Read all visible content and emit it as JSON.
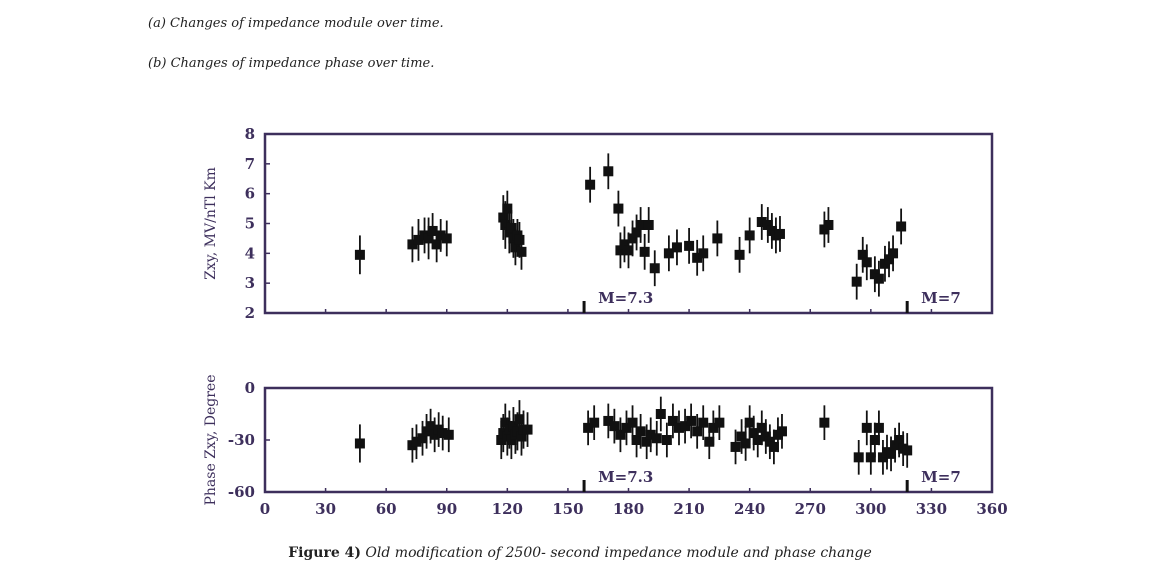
{
  "captions": {
    "a": "(a) Changes of impedance module over time.",
    "b": "(b) Changes of impedance phase over time."
  },
  "figure_caption": {
    "label": "Figure 4)",
    "text": "Old modification of 2500- second impedance module and phase change"
  },
  "colors": {
    "marker": "#111111",
    "axis": "#3d2f5c",
    "text": "#3d2f5c"
  },
  "chart_data": [
    {
      "type": "scatter",
      "title": "",
      "xlabel": "",
      "ylabel": "Zxy, MV/nTl Km",
      "xlim": [
        0,
        360
      ],
      "ylim": [
        2,
        8
      ],
      "yticks": [
        2,
        3,
        4,
        5,
        6,
        7,
        8
      ],
      "error_bars": true,
      "annotations": [
        {
          "text": "M=7.3",
          "x": 158
        },
        {
          "text": "M=7",
          "x": 318
        }
      ],
      "points": [
        {
          "x": 47,
          "y": 3.95,
          "err": 0.65
        },
        {
          "x": 73,
          "y": 4.3,
          "err": 0.6
        },
        {
          "x": 76,
          "y": 4.45,
          "err": 0.7
        },
        {
          "x": 79,
          "y": 4.6,
          "err": 0.6
        },
        {
          "x": 81,
          "y": 4.5,
          "err": 0.7
        },
        {
          "x": 83,
          "y": 4.75,
          "err": 0.6
        },
        {
          "x": 85,
          "y": 4.3,
          "err": 0.6
        },
        {
          "x": 87,
          "y": 4.6,
          "err": 0.55
        },
        {
          "x": 90,
          "y": 4.5,
          "err": 0.6
        },
        {
          "x": 118,
          "y": 5.2,
          "err": 0.75
        },
        {
          "x": 119,
          "y": 4.95,
          "err": 0.8
        },
        {
          "x": 120,
          "y": 5.5,
          "err": 0.6
        },
        {
          "x": 121,
          "y": 4.7,
          "err": 0.7
        },
        {
          "x": 122,
          "y": 4.85,
          "err": 0.6
        },
        {
          "x": 123,
          "y": 4.5,
          "err": 0.65
        },
        {
          "x": 124,
          "y": 4.2,
          "err": 0.6
        },
        {
          "x": 125,
          "y": 4.6,
          "err": 0.55
        },
        {
          "x": 126,
          "y": 4.45,
          "err": 0.6
        },
        {
          "x": 127,
          "y": 4.05,
          "err": 0.6
        },
        {
          "x": 161,
          "y": 6.3,
          "err": 0.6
        },
        {
          "x": 170,
          "y": 6.75,
          "err": 0.6
        },
        {
          "x": 175,
          "y": 5.5,
          "err": 0.6
        },
        {
          "x": 176,
          "y": 4.1,
          "err": 0.6
        },
        {
          "x": 178,
          "y": 4.3,
          "err": 0.6
        },
        {
          "x": 180,
          "y": 4.1,
          "err": 0.6
        },
        {
          "x": 182,
          "y": 4.5,
          "err": 0.6
        },
        {
          "x": 184,
          "y": 4.7,
          "err": 0.6
        },
        {
          "x": 186,
          "y": 4.95,
          "err": 0.6
        },
        {
          "x": 188,
          "y": 4.05,
          "err": 0.6
        },
        {
          "x": 190,
          "y": 4.95,
          "err": 0.6
        },
        {
          "x": 193,
          "y": 3.5,
          "err": 0.6
        },
        {
          "x": 200,
          "y": 4.0,
          "err": 0.6
        },
        {
          "x": 204,
          "y": 4.2,
          "err": 0.6
        },
        {
          "x": 210,
          "y": 4.25,
          "err": 0.6
        },
        {
          "x": 214,
          "y": 3.85,
          "err": 0.6
        },
        {
          "x": 217,
          "y": 4.0,
          "err": 0.6
        },
        {
          "x": 224,
          "y": 4.5,
          "err": 0.6
        },
        {
          "x": 235,
          "y": 3.95,
          "err": 0.6
        },
        {
          "x": 240,
          "y": 4.6,
          "err": 0.6
        },
        {
          "x": 246,
          "y": 5.05,
          "err": 0.6
        },
        {
          "x": 249,
          "y": 4.95,
          "err": 0.6
        },
        {
          "x": 251,
          "y": 4.75,
          "err": 0.6
        },
        {
          "x": 253,
          "y": 4.6,
          "err": 0.6
        },
        {
          "x": 255,
          "y": 4.65,
          "err": 0.6
        },
        {
          "x": 277,
          "y": 4.8,
          "err": 0.6
        },
        {
          "x": 279,
          "y": 4.95,
          "err": 0.6
        },
        {
          "x": 293,
          "y": 3.05,
          "err": 0.6
        },
        {
          "x": 296,
          "y": 3.95,
          "err": 0.6
        },
        {
          "x": 298,
          "y": 3.7,
          "err": 0.6
        },
        {
          "x": 302,
          "y": 3.3,
          "err": 0.6
        },
        {
          "x": 304,
          "y": 3.15,
          "err": 0.6
        },
        {
          "x": 307,
          "y": 3.65,
          "err": 0.6
        },
        {
          "x": 309,
          "y": 3.8,
          "err": 0.6
        },
        {
          "x": 311,
          "y": 4.0,
          "err": 0.6
        },
        {
          "x": 315,
          "y": 4.9,
          "err": 0.6
        }
      ]
    },
    {
      "type": "scatter",
      "title": "",
      "xlabel": "",
      "ylabel": "Phase Zxy, Degree",
      "xlim": [
        0,
        360
      ],
      "ylim": [
        -60,
        0
      ],
      "yticks": [
        0,
        -30,
        -60
      ],
      "xticks": [
        0,
        30,
        60,
        90,
        120,
        150,
        180,
        210,
        240,
        270,
        300,
        330,
        360
      ],
      "error_bars": true,
      "annotations": [
        {
          "text": "M=7.3",
          "x": 158
        },
        {
          "text": "M=7",
          "x": 318
        }
      ],
      "points": [
        {
          "x": 47,
          "y": -32,
          "err": 11
        },
        {
          "x": 73,
          "y": -33,
          "err": 10
        },
        {
          "x": 75,
          "y": -31,
          "err": 10
        },
        {
          "x": 78,
          "y": -29,
          "err": 10
        },
        {
          "x": 80,
          "y": -25,
          "err": 10
        },
        {
          "x": 82,
          "y": -22,
          "err": 10
        },
        {
          "x": 84,
          "y": -27,
          "err": 10
        },
        {
          "x": 86,
          "y": -24,
          "err": 10
        },
        {
          "x": 88,
          "y": -26,
          "err": 10
        },
        {
          "x": 91,
          "y": -27,
          "err": 10
        },
        {
          "x": 117,
          "y": -30,
          "err": 11
        },
        {
          "x": 118,
          "y": -26,
          "err": 11
        },
        {
          "x": 119,
          "y": -20,
          "err": 11
        },
        {
          "x": 120,
          "y": -28,
          "err": 11
        },
        {
          "x": 121,
          "y": -24,
          "err": 11
        },
        {
          "x": 122,
          "y": -30,
          "err": 11
        },
        {
          "x": 123,
          "y": -22,
          "err": 11
        },
        {
          "x": 124,
          "y": -27,
          "err": 11
        },
        {
          "x": 125,
          "y": -25,
          "err": 11
        },
        {
          "x": 126,
          "y": -18,
          "err": 11
        },
        {
          "x": 127,
          "y": -28,
          "err": 11
        },
        {
          "x": 128,
          "y": -24,
          "err": 11
        },
        {
          "x": 130,
          "y": -24,
          "err": 10
        },
        {
          "x": 160,
          "y": -23,
          "err": 10
        },
        {
          "x": 163,
          "y": -20,
          "err": 10
        },
        {
          "x": 170,
          "y": -19,
          "err": 10
        },
        {
          "x": 173,
          "y": -22,
          "err": 10
        },
        {
          "x": 176,
          "y": -27,
          "err": 10
        },
        {
          "x": 179,
          "y": -23,
          "err": 10
        },
        {
          "x": 182,
          "y": -20,
          "err": 10
        },
        {
          "x": 184,
          "y": -30,
          "err": 10
        },
        {
          "x": 186,
          "y": -25,
          "err": 10
        },
        {
          "x": 189,
          "y": -31,
          "err": 10
        },
        {
          "x": 191,
          "y": -27,
          "err": 10
        },
        {
          "x": 194,
          "y": -29,
          "err": 10
        },
        {
          "x": 196,
          "y": -15,
          "err": 10
        },
        {
          "x": 199,
          "y": -30,
          "err": 10
        },
        {
          "x": 202,
          "y": -19,
          "err": 10
        },
        {
          "x": 205,
          "y": -23,
          "err": 10
        },
        {
          "x": 208,
          "y": -22,
          "err": 10
        },
        {
          "x": 211,
          "y": -19,
          "err": 10
        },
        {
          "x": 214,
          "y": -25,
          "err": 10
        },
        {
          "x": 217,
          "y": -20,
          "err": 10
        },
        {
          "x": 220,
          "y": -31,
          "err": 10
        },
        {
          "x": 222,
          "y": -23,
          "err": 10
        },
        {
          "x": 225,
          "y": -20,
          "err": 10
        },
        {
          "x": 233,
          "y": -34,
          "err": 10
        },
        {
          "x": 236,
          "y": -28,
          "err": 10
        },
        {
          "x": 238,
          "y": -32,
          "err": 10
        },
        {
          "x": 240,
          "y": -20,
          "err": 10
        },
        {
          "x": 242,
          "y": -26,
          "err": 10
        },
        {
          "x": 244,
          "y": -30,
          "err": 10
        },
        {
          "x": 246,
          "y": -23,
          "err": 10
        },
        {
          "x": 248,
          "y": -28,
          "err": 10
        },
        {
          "x": 250,
          "y": -31,
          "err": 10
        },
        {
          "x": 252,
          "y": -34,
          "err": 10
        },
        {
          "x": 254,
          "y": -27,
          "err": 10
        },
        {
          "x": 256,
          "y": -25,
          "err": 10
        },
        {
          "x": 277,
          "y": -20,
          "err": 10
        },
        {
          "x": 294,
          "y": -40,
          "err": 10
        },
        {
          "x": 298,
          "y": -23,
          "err": 10
        },
        {
          "x": 300,
          "y": -40,
          "err": 10
        },
        {
          "x": 302,
          "y": -30,
          "err": 10
        },
        {
          "x": 304,
          "y": -23,
          "err": 10
        },
        {
          "x": 306,
          "y": -40,
          "err": 10
        },
        {
          "x": 308,
          "y": -37,
          "err": 10
        },
        {
          "x": 310,
          "y": -38,
          "err": 10
        },
        {
          "x": 312,
          "y": -33,
          "err": 10
        },
        {
          "x": 314,
          "y": -30,
          "err": 10
        },
        {
          "x": 316,
          "y": -35,
          "err": 10
        },
        {
          "x": 318,
          "y": -36,
          "err": 10
        }
      ]
    }
  ]
}
